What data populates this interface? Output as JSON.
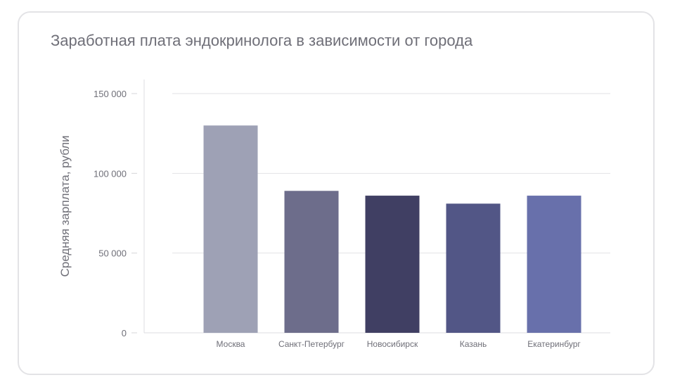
{
  "chart_data": {
    "type": "bar",
    "title": "Заработная плата эндокринолога в зависимости от города",
    "ylabel": "Средняя зарплата, рубли",
    "xlabel": "",
    "categories": [
      "Москва",
      "Санкт-Петербург",
      "Новосибирск",
      "Казань",
      "Екатеринбург"
    ],
    "values": [
      130000,
      89000,
      86000,
      81000,
      86000
    ],
    "colors": [
      "#9ea1b5",
      "#6d6d8b",
      "#403f63",
      "#525686",
      "#6870ab"
    ],
    "ylim": [
      0,
      150000
    ],
    "yticks": [
      0,
      50000,
      100000,
      150000
    ],
    "ytick_labels": [
      "0",
      "50 000",
      "100 000",
      "150 000"
    ],
    "grid": true,
    "legend": "none"
  }
}
